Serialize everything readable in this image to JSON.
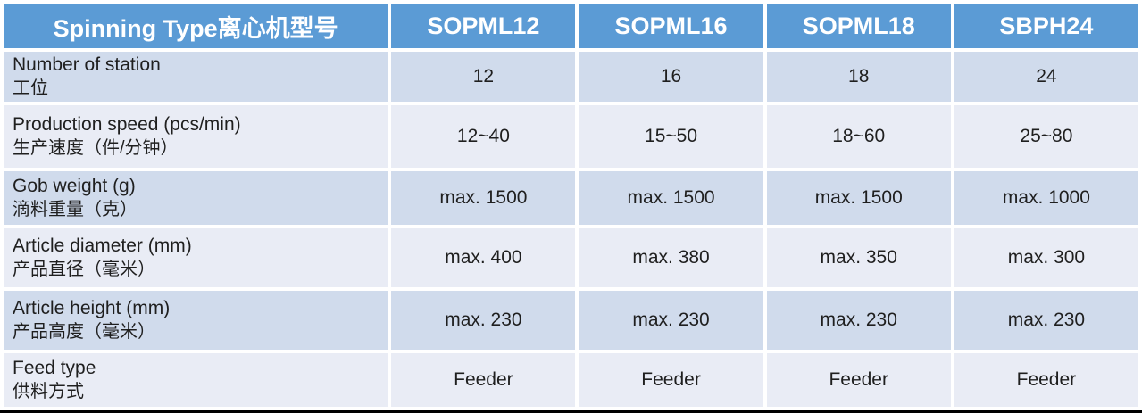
{
  "chart_data": {
    "type": "table",
    "title": "Spinning Type离心机型号",
    "columns": [
      "Spinning Type离心机型号",
      "SOPML12",
      "SOPML16",
      "SOPML18",
      "SBPH24"
    ],
    "rows": [
      {
        "label_en": "Number of station",
        "label_zh": "工位",
        "values": [
          "12",
          "16",
          "18",
          "24"
        ]
      },
      {
        "label_en": "Production speed (pcs/min)",
        "label_zh": "生产速度（件/分钟）",
        "values": [
          "12~40",
          "15~50",
          "18~60",
          "25~80"
        ]
      },
      {
        "label_en": "Gob weight (g)",
        "label_zh": "滴料重量（克）",
        "values": [
          "max. 1500",
          "max. 1500",
          "max. 1500",
          "max. 1000"
        ]
      },
      {
        "label_en": "Article diameter (mm)",
        "label_zh": "产品直径（毫米）",
        "values": [
          "max. 400",
          "max. 380",
          "max. 350",
          "max. 300"
        ]
      },
      {
        "label_en": "Article height (mm)",
        "label_zh": "产品高度（毫米）",
        "values": [
          "max. 230",
          "max. 230",
          "max. 230",
          "max. 230"
        ]
      },
      {
        "label_en": "Feed type",
        "label_zh": "供料方式",
        "values": [
          "Feeder",
          "Feeder",
          "Feeder",
          "Feeder"
        ]
      }
    ],
    "layout": {
      "banding": "alternating rows",
      "header_position": "top"
    },
    "colors": {
      "header_bg": "#5B9BD5",
      "header_text": "#FFFFFF",
      "band_dark": "#D0DBEC",
      "band_light": "#E9ECF5",
      "body_text": "#1F1F1F",
      "bottom_rule": "#000000",
      "gap": "#FFFFFF"
    }
  }
}
